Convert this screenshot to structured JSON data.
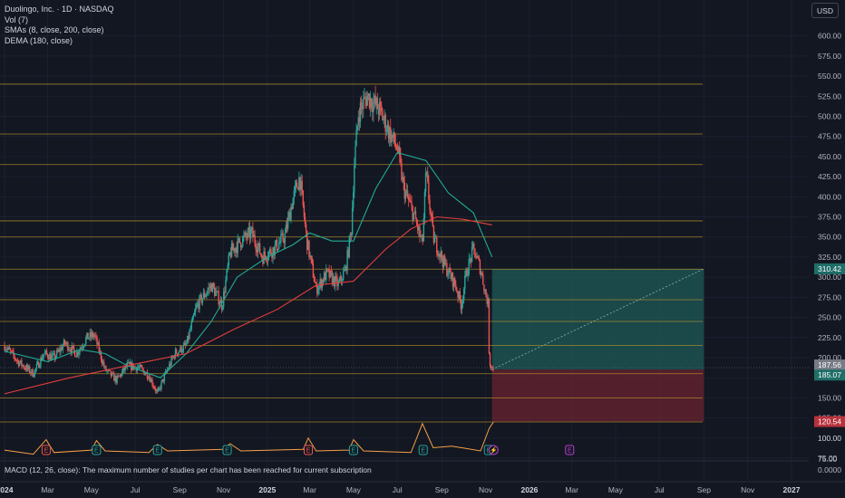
{
  "header": {
    "title": "Duolingo, Inc. · 1D · NASDAQ",
    "indicators": [
      "Vol (7)",
      "SMAs (8, close, 200, close)",
      "DEMA (180, close)"
    ],
    "currency": "USD"
  },
  "footer": {
    "macd_note": "MACD (12, 26, close): The maximum number of studies per chart has been reached for current subscription"
  },
  "colors": {
    "background": "#131722",
    "candle_up": "#26a69a",
    "candle_down": "#ef5350",
    "sma_fast": "#22ab94",
    "dema": "#e53e3e",
    "volume_line": "#f7a046",
    "hline": "#c9a227",
    "target_zone": "#1f5a57",
    "stop_zone": "#6a2330"
  },
  "chart_data": {
    "type": "candlestick",
    "title": "Duolingo, Inc. · 1D · NASDAQ",
    "x_tick_labels": [
      "2024",
      "Mar",
      "May",
      "Jul",
      "Sep",
      "Nov",
      "2025",
      "Mar",
      "May",
      "Jul",
      "Sep",
      "Nov",
      "2026",
      "Mar",
      "May",
      "Jul",
      "Sep",
      "Nov",
      "2027"
    ],
    "x_tick_dates": [
      "2024-01",
      "2024-03",
      "2024-05",
      "2024-07",
      "2024-09",
      "2024-11",
      "2025-01",
      "2025-03",
      "2025-05",
      "2025-07",
      "2025-09",
      "2025-11",
      "2026-01",
      "2026-03",
      "2026-05",
      "2026-07",
      "2026-09",
      "2026-11",
      "2027-01"
    ],
    "major_ticks": [
      "2024",
      "2025",
      "2026",
      "2027"
    ],
    "y_tick_labels": [
      "600.00",
      "575.00",
      "550.00",
      "525.00",
      "500.00",
      "475.00",
      "450.00",
      "425.00",
      "400.00",
      "375.00",
      "350.00",
      "325.00",
      "300.00",
      "275.00",
      "250.00",
      "225.00",
      "200.00",
      "175.00",
      "150.00",
      "125.00",
      "100.00",
      "75.00"
    ],
    "ylim": [
      75,
      612
    ],
    "price_path": [
      [
        "2024-01-01",
        215
      ],
      [
        "2024-01-20",
        195
      ],
      [
        "2024-02-10",
        180
      ],
      [
        "2024-02-25",
        205
      ],
      [
        "2024-03-10",
        200
      ],
      [
        "2024-03-25",
        218
      ],
      [
        "2024-04-10",
        205
      ],
      [
        "2024-04-25",
        225
      ],
      [
        "2024-05-05",
        228
      ],
      [
        "2024-05-20",
        185
      ],
      [
        "2024-06-05",
        172
      ],
      [
        "2024-06-20",
        190
      ],
      [
        "2024-07-05",
        188
      ],
      [
        "2024-07-20",
        178
      ],
      [
        "2024-08-01",
        155
      ],
      [
        "2024-08-10",
        175
      ],
      [
        "2024-08-25",
        205
      ],
      [
        "2024-09-10",
        215
      ],
      [
        "2024-09-25",
        265
      ],
      [
        "2024-10-15",
        290
      ],
      [
        "2024-10-30",
        265
      ],
      [
        "2024-11-10",
        330
      ],
      [
        "2024-11-25",
        345
      ],
      [
        "2024-12-10",
        355
      ],
      [
        "2024-12-25",
        325
      ],
      [
        "2025-01-10",
        335
      ],
      [
        "2025-01-25",
        350
      ],
      [
        "2025-02-05",
        395
      ],
      [
        "2025-02-15",
        425
      ],
      [
        "2025-02-25",
        345
      ],
      [
        "2025-03-10",
        285
      ],
      [
        "2025-03-25",
        305
      ],
      [
        "2025-04-10",
        290
      ],
      [
        "2025-04-20",
        310
      ],
      [
        "2025-04-28",
        360
      ],
      [
        "2025-05-02",
        440
      ],
      [
        "2025-05-08",
        505
      ],
      [
        "2025-05-20",
        525
      ],
      [
        "2025-06-05",
        510
      ],
      [
        "2025-06-20",
        480
      ],
      [
        "2025-07-01",
        460
      ],
      [
        "2025-07-10",
        410
      ],
      [
        "2025-07-25",
        375
      ],
      [
        "2025-08-05",
        340
      ],
      [
        "2025-08-10",
        430
      ],
      [
        "2025-08-20",
        350
      ],
      [
        "2025-09-05",
        315
      ],
      [
        "2025-09-20",
        290
      ],
      [
        "2025-09-28",
        265
      ],
      [
        "2025-10-05",
        305
      ],
      [
        "2025-10-15",
        335
      ],
      [
        "2025-10-25",
        310
      ],
      [
        "2025-11-02",
        275
      ],
      [
        "2025-11-05",
        265
      ],
      [
        "2025-11-06",
        195
      ],
      [
        "2025-11-12",
        185
      ]
    ],
    "series": [
      {
        "name": "SMA 8",
        "points": [
          [
            "2024-01-01",
            208
          ],
          [
            "2024-03-01",
            195
          ],
          [
            "2024-04-15",
            210
          ],
          [
            "2024-05-20",
            205
          ],
          [
            "2024-06-20",
            190
          ],
          [
            "2024-08-05",
            175
          ],
          [
            "2024-09-10",
            205
          ],
          [
            "2024-10-15",
            245
          ],
          [
            "2024-11-20",
            300
          ],
          [
            "2025-01-01",
            325
          ],
          [
            "2025-02-05",
            340
          ],
          [
            "2025-03-01",
            355
          ],
          [
            "2025-04-01",
            345
          ],
          [
            "2025-05-01",
            345
          ],
          [
            "2025-06-01",
            410
          ],
          [
            "2025-07-01",
            455
          ],
          [
            "2025-08-10",
            445
          ],
          [
            "2025-09-10",
            405
          ],
          [
            "2025-10-15",
            380
          ],
          [
            "2025-11-10",
            325
          ]
        ]
      },
      {
        "name": "DEMA 180",
        "points": [
          [
            "2024-01-01",
            155
          ],
          [
            "2024-04-01",
            175
          ],
          [
            "2024-07-01",
            192
          ],
          [
            "2024-09-10",
            205
          ],
          [
            "2024-11-15",
            235
          ],
          [
            "2025-01-15",
            260
          ],
          [
            "2025-03-10",
            290
          ],
          [
            "2025-05-01",
            295
          ],
          [
            "2025-06-15",
            335
          ],
          [
            "2025-07-20",
            360
          ],
          [
            "2025-08-25",
            375
          ],
          [
            "2025-10-01",
            372
          ],
          [
            "2025-11-10",
            365
          ]
        ]
      }
    ],
    "horizontal_levels": [
      540,
      478,
      440,
      370,
      350,
      310,
      272,
      245,
      215,
      180,
      150,
      120
    ],
    "position_tool": {
      "entry": 185.07,
      "target": 310.42,
      "stop": 120.54,
      "start": "2025-11-10",
      "end": "2026-09-01"
    },
    "price_labels": [
      {
        "value": "310.42",
        "kind": "target"
      },
      {
        "value": "187.56",
        "kind": "last"
      },
      {
        "value": "185.07",
        "kind": "entry"
      },
      {
        "value": "120.54",
        "kind": "stop"
      }
    ],
    "volume_pane": {
      "y_tick_labels": [
        "100.00",
        "75.00",
        "0.0000"
      ],
      "line": [
        [
          "2024-01-01",
          85
        ],
        [
          "2024-02-10",
          80
        ],
        [
          "2024-02-28",
          98
        ],
        [
          "2024-03-10",
          82
        ],
        [
          "2024-05-01",
          85
        ],
        [
          "2024-05-08",
          97
        ],
        [
          "2024-05-20",
          84
        ],
        [
          "2024-07-20",
          82
        ],
        [
          "2024-08-01",
          92
        ],
        [
          "2024-08-15",
          84
        ],
        [
          "2024-11-01",
          86
        ],
        [
          "2024-11-10",
          93
        ],
        [
          "2024-11-25",
          84
        ],
        [
          "2025-02-20",
          86
        ],
        [
          "2025-02-27",
          100
        ],
        [
          "2025-03-10",
          84
        ],
        [
          "2025-04-25",
          85
        ],
        [
          "2025-05-01",
          98
        ],
        [
          "2025-05-15",
          84
        ],
        [
          "2025-07-20",
          82
        ],
        [
          "2025-08-05",
          118
        ],
        [
          "2025-08-20",
          88
        ],
        [
          "2025-09-15",
          90
        ],
        [
          "2025-10-25",
          84
        ],
        [
          "2025-11-06",
          112
        ],
        [
          "2025-11-12",
          120
        ]
      ],
      "events": [
        {
          "date": "2024-02-28",
          "label": "E"
        },
        {
          "date": "2024-05-08",
          "label": "E"
        },
        {
          "date": "2024-08-01",
          "label": "E"
        },
        {
          "date": "2024-11-06",
          "label": "E"
        },
        {
          "date": "2025-02-27",
          "label": "E"
        },
        {
          "date": "2025-05-01",
          "label": "E"
        },
        {
          "date": "2025-08-06",
          "label": "E"
        },
        {
          "date": "2025-11-05",
          "label": "E"
        },
        {
          "date": "2025-11-12",
          "label": "⚡"
        },
        {
          "date": "2026-02-26",
          "label": "E"
        }
      ]
    }
  }
}
